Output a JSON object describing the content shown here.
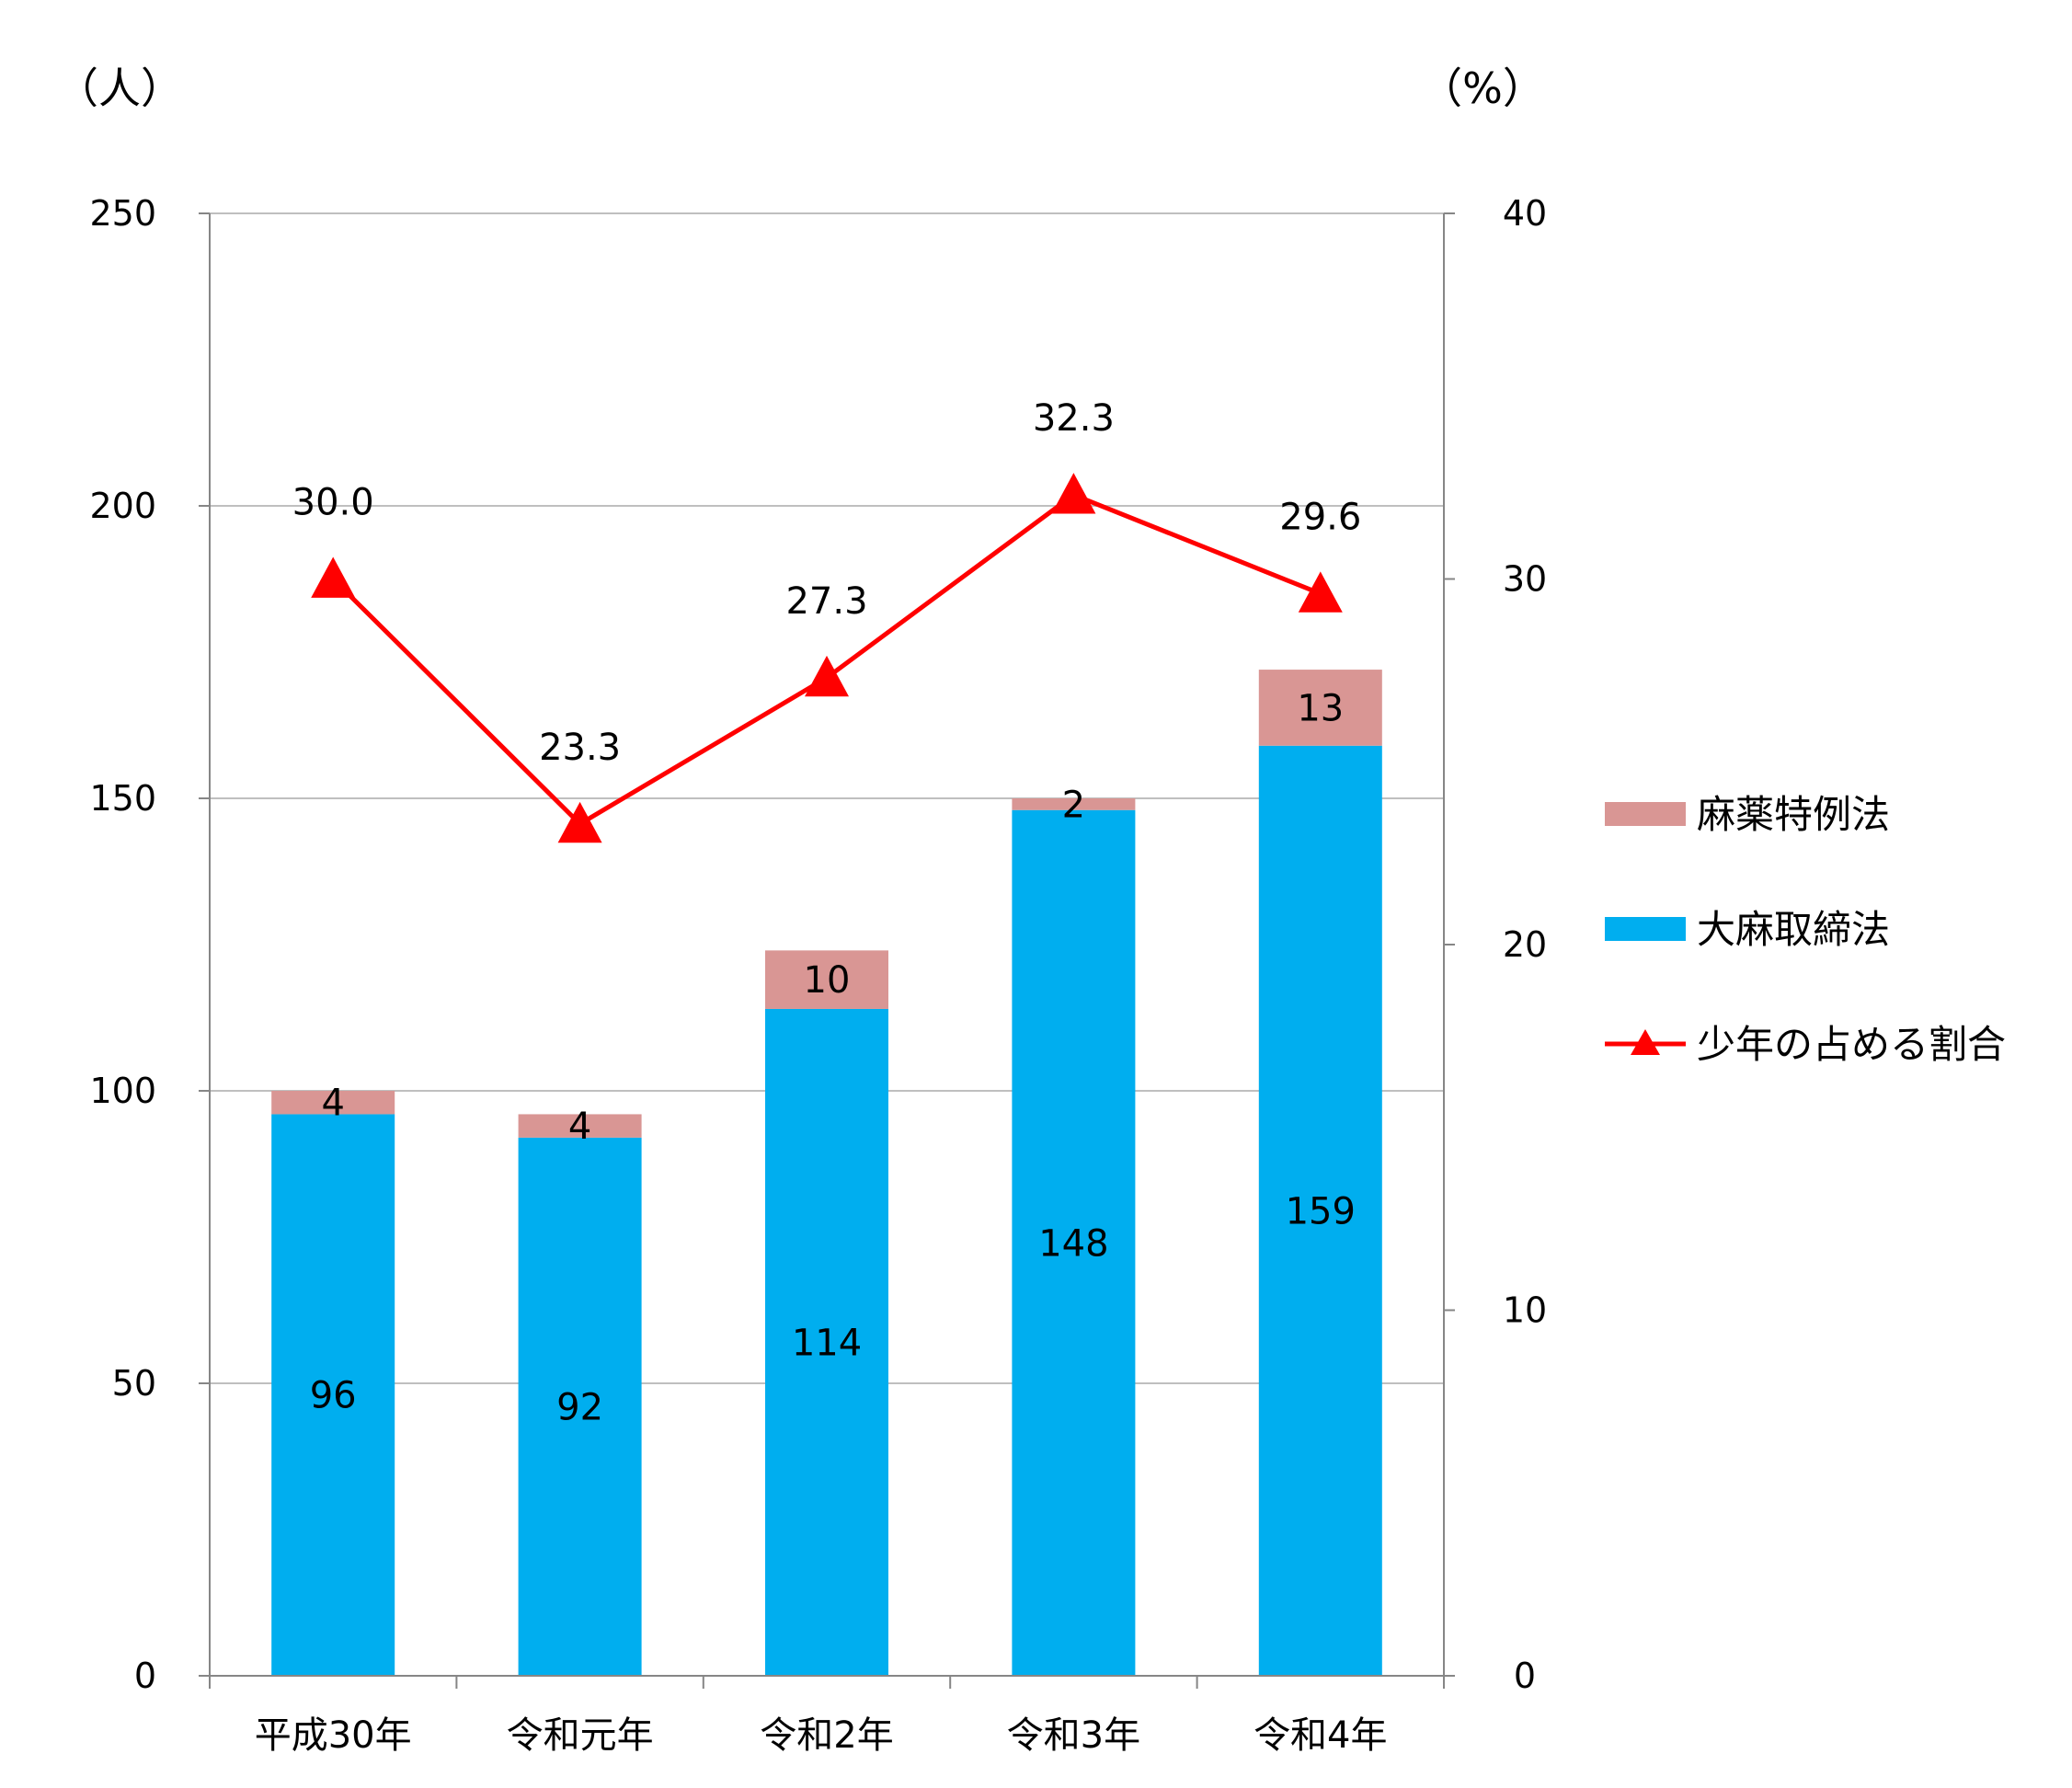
{
  "chart_data": {
    "type": "bar",
    "stacked": true,
    "left_unit_label": "（人）",
    "right_unit_label": "（%）",
    "categories": [
      "平成30年",
      "令和元年",
      "令和2年",
      "令和3年",
      "令和4年"
    ],
    "y_left": {
      "min": 0,
      "max": 250,
      "ticks": [
        "0",
        "50",
        "100",
        "150",
        "200",
        "250"
      ]
    },
    "y_right": {
      "min": 0,
      "max": 40,
      "ticks": [
        "0",
        "10",
        "20",
        "30",
        "40"
      ]
    },
    "grid": true,
    "legend_position": "right",
    "series": [
      {
        "name": "大麻取締法",
        "type": "bar",
        "axis": "left",
        "color": "#00AEEF",
        "values": [
          96,
          92,
          114,
          148,
          159
        ],
        "labels": [
          "96",
          "92",
          "114",
          "148",
          "159"
        ]
      },
      {
        "name": "麻薬特例法",
        "type": "bar",
        "axis": "left",
        "color": "#D99694",
        "values": [
          4,
          4,
          10,
          2,
          13
        ],
        "labels": [
          "4",
          "4",
          "10",
          "2",
          "13"
        ]
      },
      {
        "name": "少年の占める割合",
        "type": "line",
        "axis": "right",
        "color": "#FF0000",
        "marker": "triangle",
        "values": [
          30.0,
          23.3,
          27.3,
          32.3,
          29.6
        ],
        "labels": [
          "30.0",
          "23.3",
          "27.3",
          "32.3",
          "29.6"
        ]
      }
    ]
  }
}
